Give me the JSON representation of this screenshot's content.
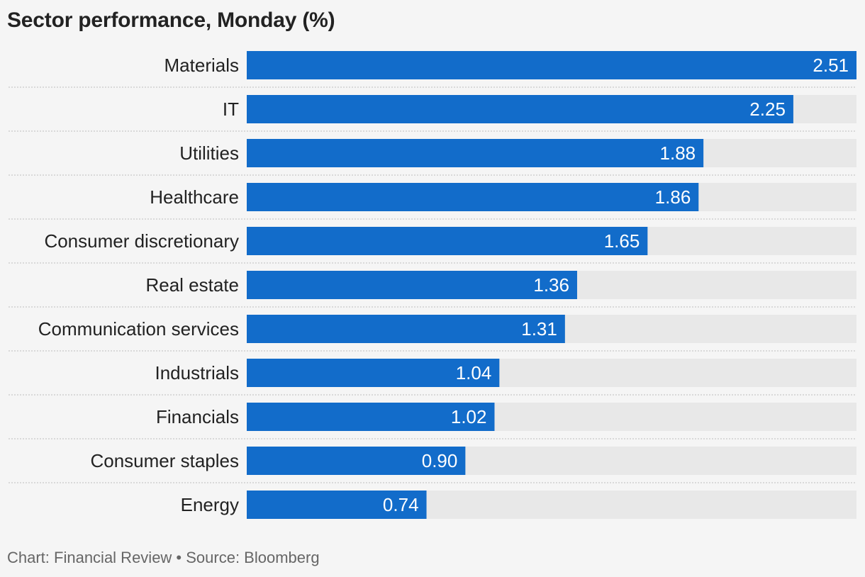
{
  "chart_data": {
    "type": "bar",
    "orientation": "horizontal",
    "title": "Sector performance, Monday (%)",
    "categories": [
      "Materials",
      "IT",
      "Utilities",
      "Healthcare",
      "Consumer discretionary",
      "Real estate",
      "Communication services",
      "Industrials",
      "Financials",
      "Consumer staples",
      "Energy"
    ],
    "values": [
      2.51,
      2.25,
      1.88,
      1.86,
      1.65,
      1.36,
      1.31,
      1.04,
      1.02,
      0.9,
      0.74
    ],
    "value_labels": [
      "2.51",
      "2.25",
      "1.88",
      "1.86",
      "1.65",
      "1.36",
      "1.31",
      "1.04",
      "1.02",
      "0.90",
      "0.74"
    ],
    "xlim": [
      0,
      2.51
    ],
    "grid": false,
    "colors": {
      "bar": "#126cca",
      "track": "#e8e8e8",
      "background": "#f5f5f5"
    }
  },
  "footer": {
    "credit": "Chart: Financial Review • Source: Bloomberg"
  }
}
